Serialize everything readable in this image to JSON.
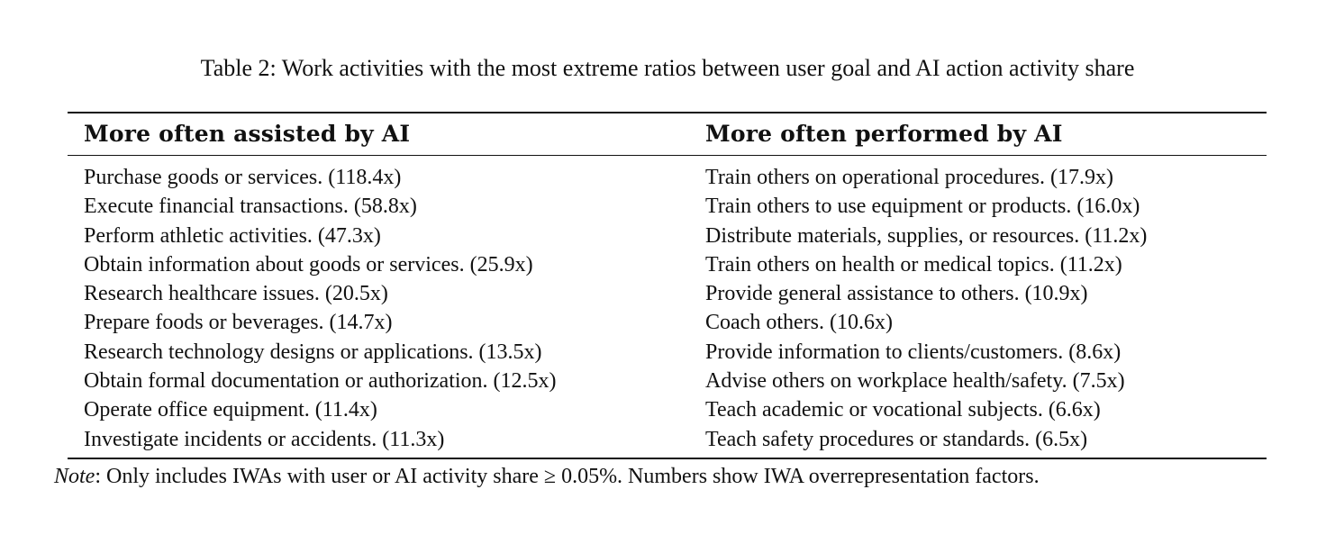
{
  "caption": "Table 2: Work activities with the most extreme ratios between user goal and AI action activity share",
  "table": {
    "headers": [
      "More often assisted by AI",
      "More often performed by AI"
    ],
    "rows": [
      [
        "Purchase goods or services. (118.4x)",
        "Train others on operational procedures. (17.9x)"
      ],
      [
        "Execute financial transactions. (58.8x)",
        "Train others to use equipment or products. (16.0x)"
      ],
      [
        "Perform athletic activities. (47.3x)",
        "Distribute materials, supplies, or resources. (11.2x)"
      ],
      [
        "Obtain information about goods or services. (25.9x)",
        "Train others on health or medical topics. (11.2x)"
      ],
      [
        "Research healthcare issues. (20.5x)",
        "Provide general assistance to others. (10.9x)"
      ],
      [
        "Prepare foods or beverages. (14.7x)",
        "Coach others. (10.6x)"
      ],
      [
        "Research technology designs or applications. (13.5x)",
        "Provide information to clients/customers. (8.6x)"
      ],
      [
        "Obtain formal documentation or authorization. (12.5x)",
        "Advise others on workplace health/safety. (7.5x)"
      ],
      [
        "Operate office equipment. (11.4x)",
        "Teach academic or vocational subjects. (6.6x)"
      ],
      [
        "Investigate incidents or accidents. (11.3x)",
        "Teach safety procedures or standards. (6.5x)"
      ]
    ]
  },
  "note": {
    "label": "Note",
    "text": ": Only includes IWAs with user or AI activity share ≥ 0.05%. Numbers show IWA overrepresentation factors."
  }
}
